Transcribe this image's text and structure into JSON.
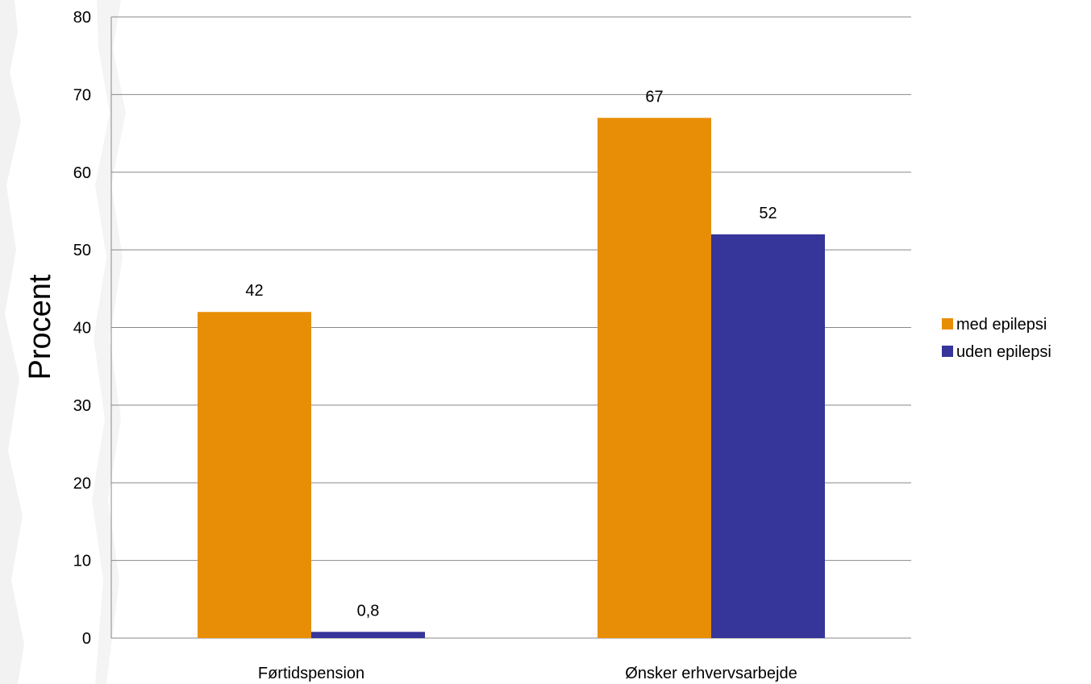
{
  "chart_data": {
    "type": "bar",
    "categories": [
      "Førtidspension",
      "Ønsker erhvervsarbejde"
    ],
    "series": [
      {
        "name": "med epilepsi",
        "values": [
          42,
          67
        ],
        "labels": [
          "42",
          "67"
        ],
        "color": "#E88E06"
      },
      {
        "name": "uden epilepsi",
        "values": [
          0.8,
          52
        ],
        "labels": [
          "0,8",
          "52"
        ],
        "color": "#363599"
      }
    ],
    "title": "",
    "xlabel": "",
    "ylabel": "Procent",
    "ylim": [
      0,
      80
    ],
    "yticks": [
      0,
      10,
      20,
      30,
      40,
      50,
      60,
      70,
      80
    ],
    "grid": true,
    "legend_position": "right"
  }
}
